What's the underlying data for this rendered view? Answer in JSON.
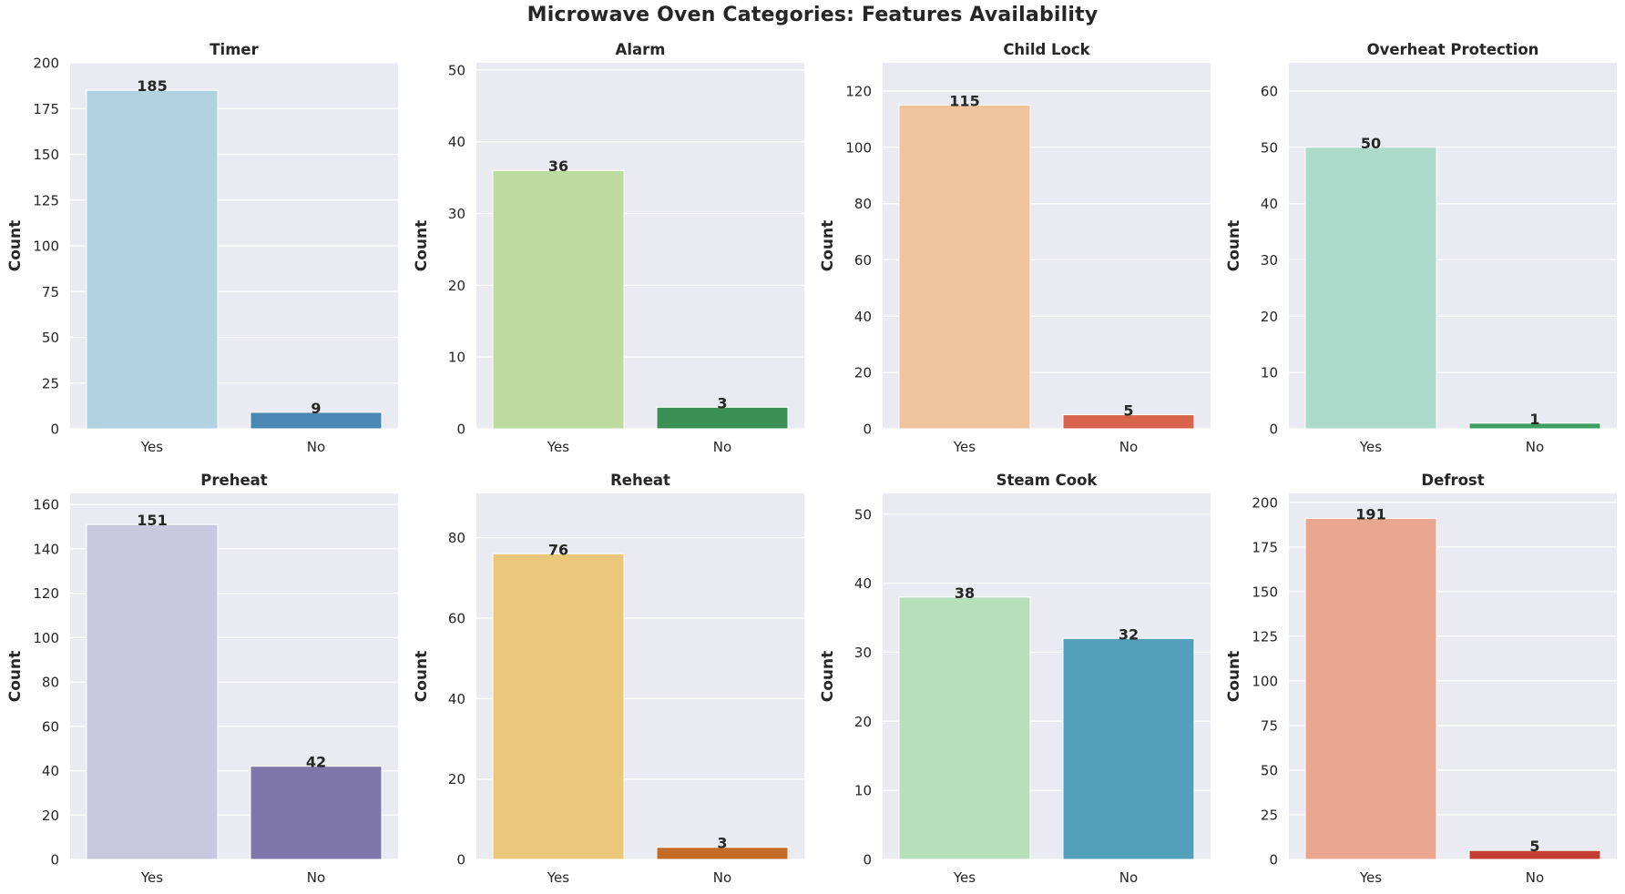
{
  "suptitle": "Microwave Oven Categories: Features Availability",
  "chart_data": [
    {
      "type": "bar",
      "title": "Timer",
      "xlabel": "",
      "ylabel": "Count",
      "categories": [
        "Yes",
        "No"
      ],
      "values": [
        185,
        9
      ],
      "ylim": [
        0,
        200
      ],
      "yticks": [
        0,
        25,
        50,
        75,
        100,
        125,
        150,
        175,
        200
      ],
      "colors": [
        "#b1d2e0",
        "#4a87b3"
      ]
    },
    {
      "type": "bar",
      "title": "Alarm",
      "xlabel": "",
      "ylabel": "Count",
      "categories": [
        "Yes",
        "No"
      ],
      "values": [
        36,
        3
      ],
      "ylim": [
        0,
        51
      ],
      "yticks": [
        0,
        10,
        20,
        30,
        40,
        50
      ],
      "colors": [
        "#bddb9e",
        "#3a8f55"
      ]
    },
    {
      "type": "bar",
      "title": "Child Lock",
      "xlabel": "",
      "ylabel": "Count",
      "categories": [
        "Yes",
        "No"
      ],
      "values": [
        115,
        5
      ],
      "ylim": [
        0,
        130
      ],
      "yticks": [
        0,
        20,
        40,
        60,
        80,
        100,
        120
      ],
      "colors": [
        "#efc39c",
        "#d8644d"
      ]
    },
    {
      "type": "bar",
      "title": "Overheat Protection",
      "xlabel": "",
      "ylabel": "Count",
      "categories": [
        "Yes",
        "No"
      ],
      "values": [
        50,
        1
      ],
      "ylim": [
        0,
        65
      ],
      "yticks": [
        0,
        10,
        20,
        30,
        40,
        50,
        60
      ],
      "colors": [
        "#acdbcb",
        "#3f9e61"
      ]
    },
    {
      "type": "bar",
      "title": "Preheat",
      "xlabel": "",
      "ylabel": "Count",
      "categories": [
        "Yes",
        "No"
      ],
      "values": [
        151,
        42
      ],
      "ylim": [
        0,
        165
      ],
      "yticks": [
        0,
        20,
        40,
        60,
        80,
        100,
        120,
        140,
        160
      ],
      "colors": [
        "#c8c9df",
        "#7f76ab"
      ]
    },
    {
      "type": "bar",
      "title": "Reheat",
      "xlabel": "",
      "ylabel": "Count",
      "categories": [
        "Yes",
        "No"
      ],
      "values": [
        76,
        3
      ],
      "ylim": [
        0,
        91
      ],
      "yticks": [
        0,
        20,
        40,
        60,
        80
      ],
      "colors": [
        "#eac77a",
        "#c36b27"
      ]
    },
    {
      "type": "bar",
      "title": "Steam Cook",
      "xlabel": "",
      "ylabel": "Count",
      "categories": [
        "Yes",
        "No"
      ],
      "values": [
        38,
        32
      ],
      "ylim": [
        0,
        53
      ],
      "yticks": [
        0,
        10,
        20,
        30,
        40,
        50
      ],
      "colors": [
        "#b7dfba",
        "#53a0bb"
      ]
    },
    {
      "type": "bar",
      "title": "Defrost",
      "xlabel": "",
      "ylabel": "Count",
      "categories": [
        "Yes",
        "No"
      ],
      "values": [
        191,
        5
      ],
      "ylim": [
        0,
        205
      ],
      "yticks": [
        0,
        25,
        50,
        75,
        100,
        125,
        150,
        175,
        200
      ],
      "colors": [
        "#eaa68e",
        "#c53e33"
      ]
    }
  ],
  "style": {
    "panel_bg": "#eaeaf2",
    "grid": "#ffffff",
    "text": "#262626"
  }
}
